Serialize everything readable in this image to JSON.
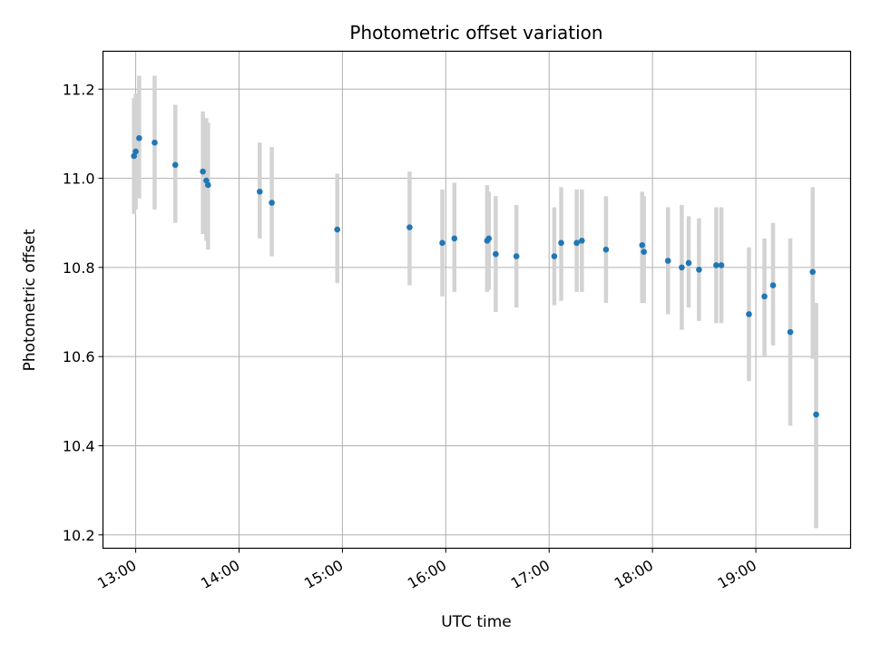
{
  "chart_data": {
    "type": "scatter",
    "title": "Photometric offset variation",
    "xlabel": "UTC time",
    "ylabel": "Photometric offset",
    "x_ticks": [
      "13:00",
      "14:00",
      "15:00",
      "16:00",
      "17:00",
      "18:00",
      "19:00"
    ],
    "y_ticks": [
      "10.2",
      "10.4",
      "10.6",
      "10.8",
      "11.0",
      "11.2"
    ],
    "xlim": [
      "12:41",
      "19:55"
    ],
    "ylim": [
      10.17,
      11.285
    ],
    "grid": true,
    "point_color": "#1f77b4",
    "errorbar_color": "#d3d3d3",
    "points": [
      {
        "x": "12:59",
        "y": 11.05,
        "ymin": 10.92,
        "ymax": 11.18
      },
      {
        "x": "13:00",
        "y": 11.06,
        "ymin": 10.93,
        "ymax": 11.19
      },
      {
        "x": "13:02",
        "y": 11.09,
        "ymin": 10.955,
        "ymax": 11.23
      },
      {
        "x": "13:11",
        "y": 11.08,
        "ymin": 10.93,
        "ymax": 11.23
      },
      {
        "x": "13:23",
        "y": 11.03,
        "ymin": 10.9,
        "ymax": 11.165
      },
      {
        "x": "13:39",
        "y": 11.015,
        "ymin": 10.875,
        "ymax": 11.15
      },
      {
        "x": "13:41",
        "y": 10.995,
        "ymin": 10.86,
        "ymax": 11.135
      },
      {
        "x": "13:42",
        "y": 10.985,
        "ymin": 10.84,
        "ymax": 11.125
      },
      {
        "x": "14:12",
        "y": 10.97,
        "ymin": 10.865,
        "ymax": 11.08
      },
      {
        "x": "14:19",
        "y": 10.945,
        "ymin": 10.825,
        "ymax": 11.07
      },
      {
        "x": "14:57",
        "y": 10.885,
        "ymin": 10.765,
        "ymax": 11.01
      },
      {
        "x": "15:39",
        "y": 10.89,
        "ymin": 10.76,
        "ymax": 11.015
      },
      {
        "x": "15:58",
        "y": 10.855,
        "ymin": 10.735,
        "ymax": 10.975
      },
      {
        "x": "16:05",
        "y": 10.865,
        "ymin": 10.745,
        "ymax": 10.99
      },
      {
        "x": "16:24",
        "y": 10.86,
        "ymin": 10.745,
        "ymax": 10.985
      },
      {
        "x": "16:25",
        "y": 10.865,
        "ymin": 10.75,
        "ymax": 10.97
      },
      {
        "x": "16:29",
        "y": 10.83,
        "ymin": 10.7,
        "ymax": 10.96
      },
      {
        "x": "16:41",
        "y": 10.825,
        "ymin": 10.71,
        "ymax": 10.94
      },
      {
        "x": "17:03",
        "y": 10.825,
        "ymin": 10.715,
        "ymax": 10.935
      },
      {
        "x": "17:07",
        "y": 10.855,
        "ymin": 10.725,
        "ymax": 10.98
      },
      {
        "x": "17:16",
        "y": 10.855,
        "ymin": 10.745,
        "ymax": 10.975
      },
      {
        "x": "17:19",
        "y": 10.86,
        "ymin": 10.745,
        "ymax": 10.975
      },
      {
        "x": "17:33",
        "y": 10.84,
        "ymin": 10.72,
        "ymax": 10.96
      },
      {
        "x": "17:54",
        "y": 10.85,
        "ymin": 10.72,
        "ymax": 10.97
      },
      {
        "x": "17:55",
        "y": 10.835,
        "ymin": 10.72,
        "ymax": 10.96
      },
      {
        "x": "18:09",
        "y": 10.815,
        "ymin": 10.695,
        "ymax": 10.935
      },
      {
        "x": "18:17",
        "y": 10.8,
        "ymin": 10.66,
        "ymax": 10.94
      },
      {
        "x": "18:21",
        "y": 10.81,
        "ymin": 10.71,
        "ymax": 10.915
      },
      {
        "x": "18:27",
        "y": 10.795,
        "ymin": 10.68,
        "ymax": 10.91
      },
      {
        "x": "18:37",
        "y": 10.805,
        "ymin": 10.675,
        "ymax": 10.935
      },
      {
        "x": "18:40",
        "y": 10.805,
        "ymin": 10.675,
        "ymax": 10.935
      },
      {
        "x": "18:56",
        "y": 10.695,
        "ymin": 10.545,
        "ymax": 10.845
      },
      {
        "x": "19:05",
        "y": 10.735,
        "ymin": 10.6,
        "ymax": 10.865
      },
      {
        "x": "19:10",
        "y": 10.76,
        "ymin": 10.625,
        "ymax": 10.9
      },
      {
        "x": "19:20",
        "y": 10.655,
        "ymin": 10.445,
        "ymax": 10.865
      },
      {
        "x": "19:33",
        "y": 10.79,
        "ymin": 10.595,
        "ymax": 10.98
      },
      {
        "x": "19:35",
        "y": 10.47,
        "ymin": 10.215,
        "ymax": 10.72
      }
    ]
  }
}
